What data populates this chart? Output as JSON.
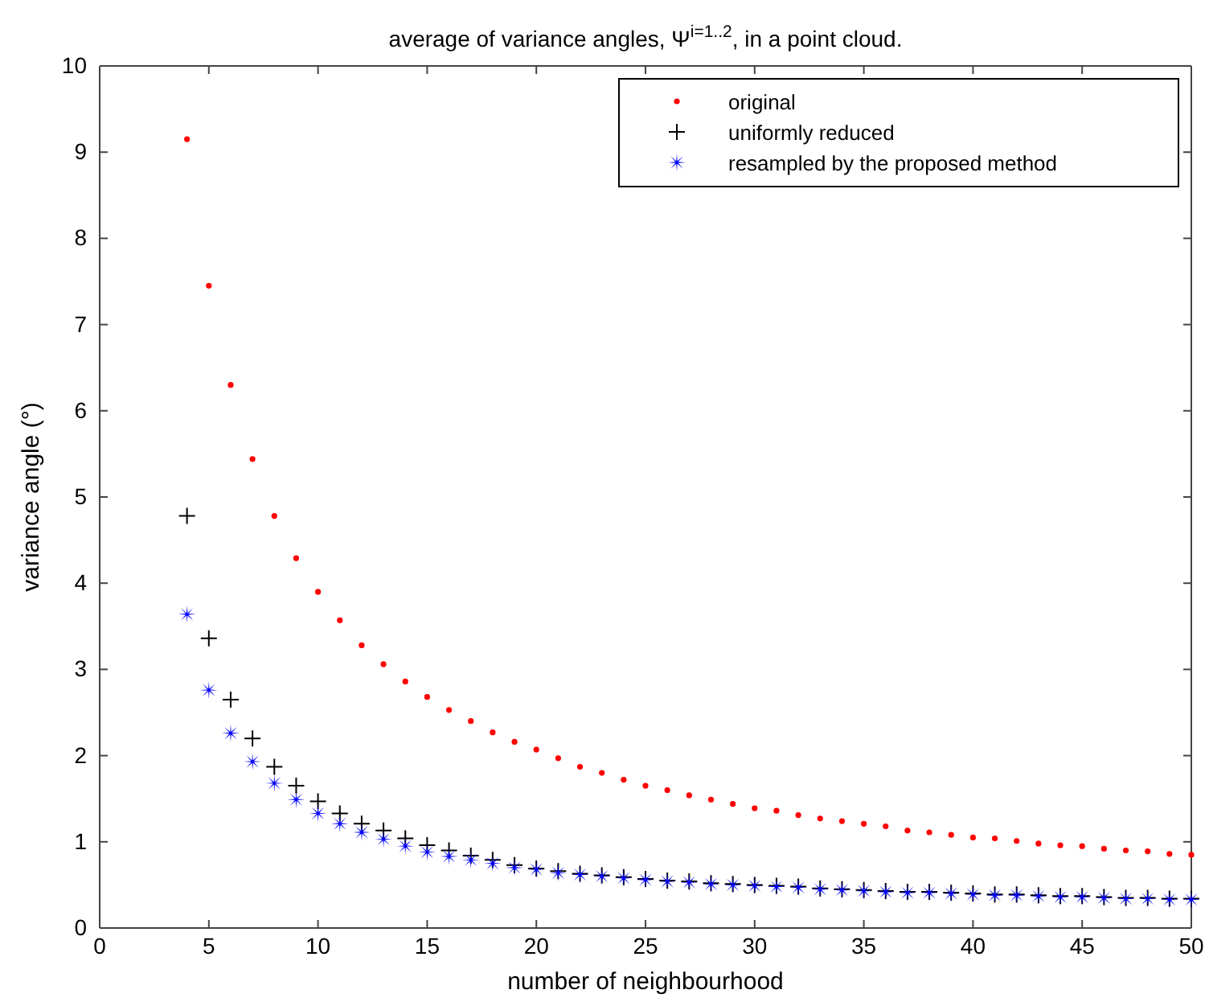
{
  "chart_data": {
    "type": "scatter",
    "title": "average of variance angles, Ψ$^{i=1..2}$, in a point cloud.",
    "xlabel": "number of neighbourhood",
    "ylabel": "variance angle (°)",
    "x": [
      4,
      5,
      6,
      7,
      8,
      9,
      10,
      11,
      12,
      13,
      14,
      15,
      16,
      17,
      18,
      19,
      20,
      21,
      22,
      23,
      24,
      25,
      26,
      27,
      28,
      29,
      30,
      31,
      32,
      33,
      34,
      35,
      36,
      37,
      38,
      39,
      40,
      41,
      42,
      43,
      44,
      45,
      46,
      47,
      48,
      49,
      50
    ],
    "series": [
      {
        "name": "original",
        "color": "#ff0000",
        "marker": "circle",
        "values": [
          9.15,
          7.45,
          6.3,
          5.44,
          4.78,
          4.29,
          3.9,
          3.57,
          3.28,
          3.06,
          2.86,
          2.68,
          2.53,
          2.4,
          2.27,
          2.16,
          2.07,
          1.97,
          1.87,
          1.8,
          1.72,
          1.65,
          1.6,
          1.54,
          1.49,
          1.44,
          1.39,
          1.36,
          1.31,
          1.27,
          1.24,
          1.21,
          1.18,
          1.13,
          1.11,
          1.08,
          1.05,
          1.04,
          1.01,
          0.98,
          0.96,
          0.95,
          0.92,
          0.9,
          0.89,
          0.86,
          0.85
        ]
      },
      {
        "name": "uniformly reduced",
        "color": "#000000",
        "marker": "cross",
        "values": [
          4.78,
          3.36,
          2.65,
          2.2,
          1.87,
          1.65,
          1.47,
          1.33,
          1.21,
          1.13,
          1.04,
          0.96,
          0.9,
          0.84,
          0.79,
          0.73,
          0.69,
          0.66,
          0.63,
          0.61,
          0.59,
          0.57,
          0.55,
          0.54,
          0.52,
          0.51,
          0.5,
          0.49,
          0.48,
          0.46,
          0.45,
          0.44,
          0.43,
          0.42,
          0.42,
          0.41,
          0.4,
          0.39,
          0.39,
          0.38,
          0.37,
          0.37,
          0.36,
          0.35,
          0.35,
          0.34,
          0.34
        ]
      },
      {
        "name": "resampled by the proposed method",
        "color": "#0000ff",
        "marker": "star",
        "values": [
          3.64,
          2.76,
          2.26,
          1.93,
          1.68,
          1.49,
          1.33,
          1.21,
          1.11,
          1.03,
          0.95,
          0.88,
          0.83,
          0.79,
          0.75,
          0.7,
          0.68,
          0.64,
          0.62,
          0.6,
          0.58,
          0.56,
          0.54,
          0.53,
          0.51,
          0.5,
          0.49,
          0.48,
          0.47,
          0.45,
          0.44,
          0.43,
          0.42,
          0.41,
          0.41,
          0.4,
          0.39,
          0.38,
          0.38,
          0.37,
          0.36,
          0.36,
          0.35,
          0.34,
          0.34,
          0.33,
          0.33
        ]
      }
    ],
    "xlim": [
      0,
      50
    ],
    "ylim": [
      0,
      10
    ],
    "xticks": [
      0,
      5,
      10,
      15,
      20,
      25,
      30,
      35,
      40,
      45,
      50
    ],
    "yticks": [
      0,
      1,
      2,
      3,
      4,
      5,
      6,
      7,
      8,
      9,
      10
    ],
    "grid": false,
    "legend": "top right"
  }
}
